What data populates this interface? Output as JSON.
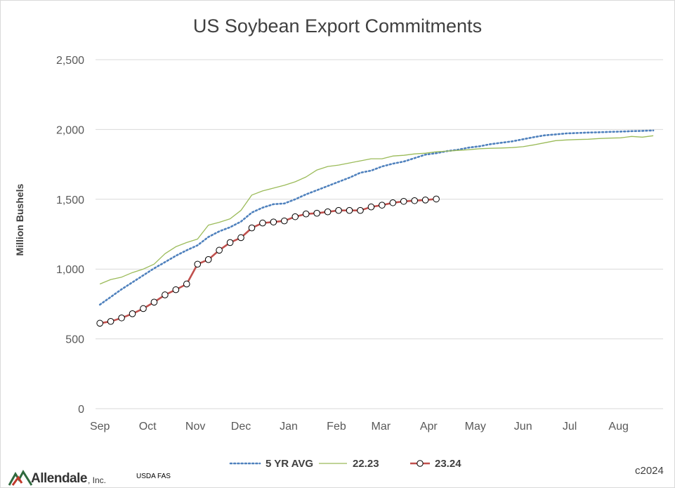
{
  "chart_data": {
    "type": "line",
    "title": "US Soybean Export Commitments",
    "ylabel": "Million Bushels",
    "xlabel": "",
    "ylim": [
      0,
      2500
    ],
    "yticks": [
      0,
      500,
      1000,
      1500,
      2000,
      2500
    ],
    "ytick_labels": [
      "0",
      "500",
      "1,000",
      "1,500",
      "2,000",
      "2,500"
    ],
    "x_unit": "weeks from start of marketing year (Sep)",
    "xlim": [
      -0.4,
      51.9
    ],
    "months": [
      {
        "label": "Sep",
        "x": 0
      },
      {
        "label": "Oct",
        "x": 4.4
      },
      {
        "label": "Nov",
        "x": 8.8
      },
      {
        "label": "Dec",
        "x": 13.0
      },
      {
        "label": "Jan",
        "x": 17.4
      },
      {
        "label": "Feb",
        "x": 21.8
      },
      {
        "label": "Mar",
        "x": 25.9
      },
      {
        "label": "Apr",
        "x": 30.3
      },
      {
        "label": "May",
        "x": 34.6
      },
      {
        "label": "Jun",
        "x": 39.0
      },
      {
        "label": "Jul",
        "x": 43.3
      },
      {
        "label": "Aug",
        "x": 47.8
      }
    ],
    "grid": true,
    "legend_position": "bottom",
    "series": [
      {
        "name": "5 YR AVG",
        "color": "#4f81bd",
        "style": "dotted",
        "x": [
          0,
          1,
          2,
          3,
          4,
          5,
          6,
          7,
          8,
          9,
          10,
          11,
          12,
          13,
          14,
          15,
          16,
          17,
          18,
          19,
          20,
          21,
          22,
          23,
          24,
          25,
          26,
          27,
          28,
          29,
          30,
          31,
          32,
          33,
          34,
          35,
          36,
          37,
          38,
          39,
          40,
          41,
          42,
          43,
          44,
          45,
          46,
          47,
          48,
          49,
          50,
          51
        ],
        "values": [
          745,
          800,
          855,
          905,
          955,
          1005,
          1050,
          1095,
          1135,
          1170,
          1230,
          1270,
          1300,
          1340,
          1405,
          1440,
          1465,
          1470,
          1500,
          1535,
          1565,
          1595,
          1625,
          1655,
          1690,
          1705,
          1735,
          1755,
          1770,
          1795,
          1820,
          1830,
          1845,
          1855,
          1870,
          1880,
          1895,
          1905,
          1915,
          1930,
          1945,
          1958,
          1965,
          1972,
          1975,
          1978,
          1980,
          1983,
          1985,
          1988,
          1990,
          1993
        ]
      },
      {
        "name": "22.23",
        "color": "#9bbb59",
        "style": "solid",
        "x": [
          0,
          1,
          2,
          3,
          4,
          5,
          6,
          7,
          8,
          9,
          10,
          11,
          12,
          13,
          14,
          15,
          16,
          17,
          18,
          19,
          20,
          21,
          22,
          23,
          24,
          25,
          26,
          27,
          28,
          29,
          30,
          31,
          32,
          33,
          34,
          35,
          36,
          37,
          38,
          39,
          40,
          41,
          42,
          43,
          44,
          45,
          46,
          47,
          48,
          49,
          50,
          51
        ],
        "values": [
          893,
          925,
          942,
          975,
          1000,
          1035,
          1110,
          1160,
          1190,
          1215,
          1315,
          1335,
          1360,
          1420,
          1530,
          1560,
          1580,
          1600,
          1625,
          1660,
          1710,
          1735,
          1745,
          1760,
          1775,
          1790,
          1790,
          1810,
          1815,
          1825,
          1830,
          1840,
          1845,
          1850,
          1855,
          1862,
          1865,
          1867,
          1870,
          1877,
          1890,
          1905,
          1920,
          1925,
          1928,
          1930,
          1935,
          1938,
          1940,
          1950,
          1945,
          1955
        ]
      },
      {
        "name": "23.24",
        "color": "#c0504d",
        "style": "solid-markers",
        "x": [
          0,
          1,
          2,
          3,
          4,
          5,
          6,
          7,
          8,
          9,
          10,
          11,
          12,
          13,
          14,
          15,
          16,
          17,
          18,
          19,
          20,
          21,
          22,
          23,
          24,
          25,
          26,
          27,
          28,
          29,
          30,
          31
        ],
        "values": [
          612,
          625,
          650,
          680,
          717,
          763,
          815,
          852,
          893,
          1035,
          1068,
          1135,
          1190,
          1225,
          1295,
          1330,
          1337,
          1345,
          1375,
          1395,
          1400,
          1410,
          1420,
          1420,
          1420,
          1445,
          1458,
          1475,
          1485,
          1490,
          1495,
          1502
        ]
      }
    ]
  },
  "legend": [
    {
      "label": "5 YR AVG"
    },
    {
      "label": "22.23"
    },
    {
      "label": "23.24"
    }
  ],
  "footer": {
    "logo_text": "Allendale",
    "logo_suffix": ", Inc.",
    "source": "USDA FAS",
    "copyright": "c2024"
  }
}
